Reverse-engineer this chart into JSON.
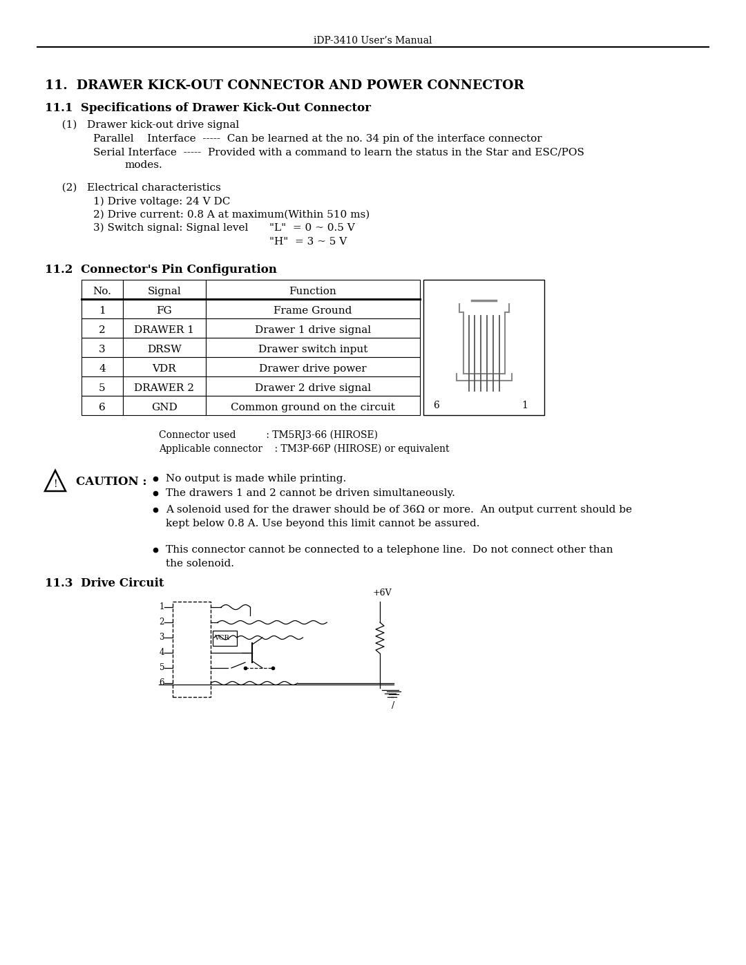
{
  "header_text": "iDP-3410 User’s Manual",
  "section_title": "11.  DRAWER KICK-OUT CONNECTOR AND POWER CONNECTOR",
  "subsection_11_1": "11.1  Specifications of Drawer Kick-Out Connector",
  "item1_label": "   (1)   Drawer kick-out drive signal",
  "item1_line1": "Parallel    Interface  -----  Can be learned at the no. 34 pin of the interface connector",
  "item1_line2": "Serial Interface  -----  Provided with a command to learn the status in the Star and ESC/POS",
  "item1_line3": "modes.",
  "item2_label": "   (2)   Electrical characteristics",
  "item2_line1": "1) Drive voltage: 24 V DC",
  "item2_line2": "2) Drive current: 0.8 A at maximum(Within 510 ms)",
  "item2_line3": "3) Switch signal: Signal level",
  "item2_line3b": "\"L\"  = 0 ~ 0.5 V",
  "item2_line4": "\"H\"  = 3 ~ 5 V",
  "subsection_11_2": "11.2  Connector's Pin Configuration",
  "table_headers": [
    "No.",
    "Signal",
    "Function"
  ],
  "table_rows": [
    [
      "1",
      "FG",
      "Frame Ground"
    ],
    [
      "2",
      "DRAWER 1",
      "Drawer 1 drive signal"
    ],
    [
      "3",
      "DRSW",
      "Drawer switch input"
    ],
    [
      "4",
      "VDR",
      "Drawer drive power"
    ],
    [
      "5",
      "DRAWER 2",
      "Drawer 2 drive signal"
    ],
    [
      "6",
      "GND",
      "Common ground on the circuit"
    ]
  ],
  "connector_line1": "Connector used          : TM5RJ3-66 (HIROSE)",
  "connector_line2": "Applicable connector    : TM3P-66P (HIROSE) or equivalent",
  "caution_label": "CAUTION",
  "caution_bullets": [
    "No output is made while printing.",
    "The drawers 1 and 2 cannot be driven simultaneously.",
    "A solenoid used for the drawer should be of 36Ω or more.  An output current should be\nkept below 0.8 A. Use beyond this limit cannot be assured.",
    "This connector cannot be connected to a telephone line.  Do not connect other than\nthe solenoid."
  ],
  "subsection_11_3": "11.3  Drive Circuit",
  "bg_color": "#ffffff",
  "text_color": "#000000"
}
